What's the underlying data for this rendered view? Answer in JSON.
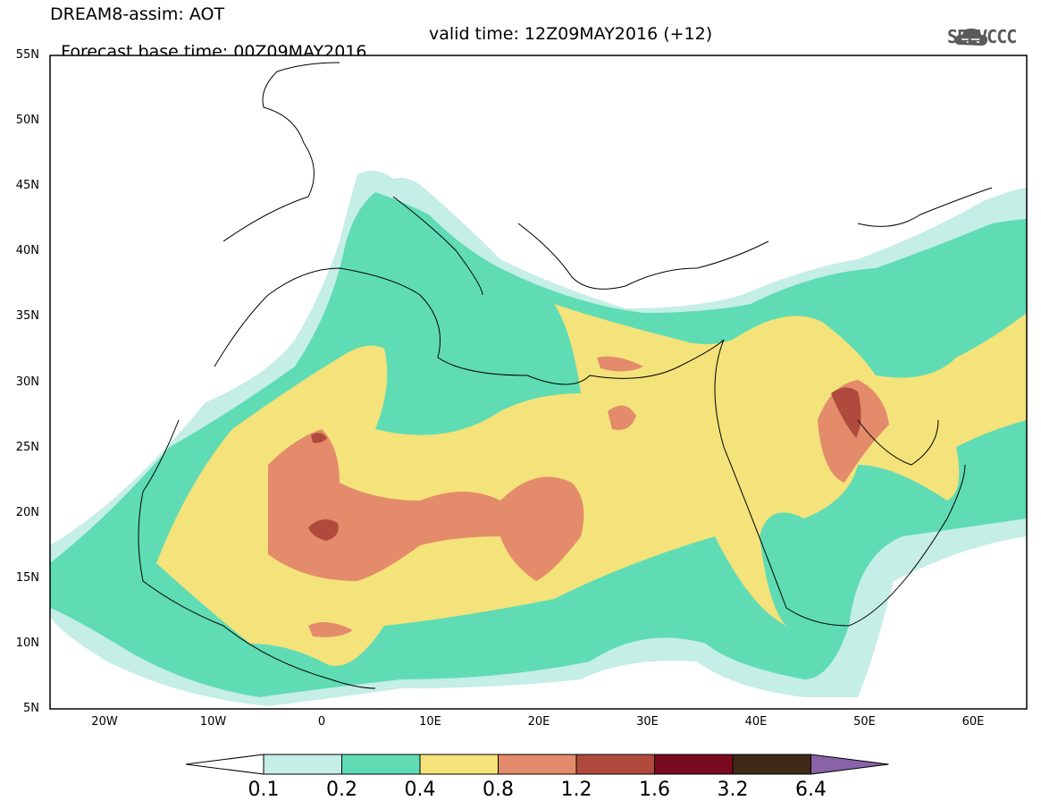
{
  "header": {
    "title": "DREAM8-assim: AOT",
    "base_time": "Forecast base time: 00Z09MAY2016",
    "valid_time": "valid time: 12Z09MAY2016 (+12)",
    "logo_text": "SEEVCCC"
  },
  "axes": {
    "lat_labels": [
      "55N",
      "50N",
      "45N",
      "40N",
      "35N",
      "30N",
      "25N",
      "20N",
      "15N",
      "10N",
      "5N"
    ],
    "lon_labels": [
      "20W",
      "10W",
      "0",
      "10E",
      "20E",
      "30E",
      "40E",
      "50E",
      "60E"
    ]
  },
  "colorbar": {
    "levels": [
      "0.1",
      "0.2",
      "0.4",
      "0.8",
      "1.2",
      "1.6",
      "3.2",
      "6.4"
    ],
    "colors": [
      "#c4eee6",
      "#5fdcb4",
      "#f4e27a",
      "#e38b6a",
      "#b04a3c",
      "#7a0a1e",
      "#3e2a16",
      "#8a62a8"
    ]
  },
  "map_colors": {
    "ocean_bg": "#ffffff",
    "coast": "#000000"
  }
}
